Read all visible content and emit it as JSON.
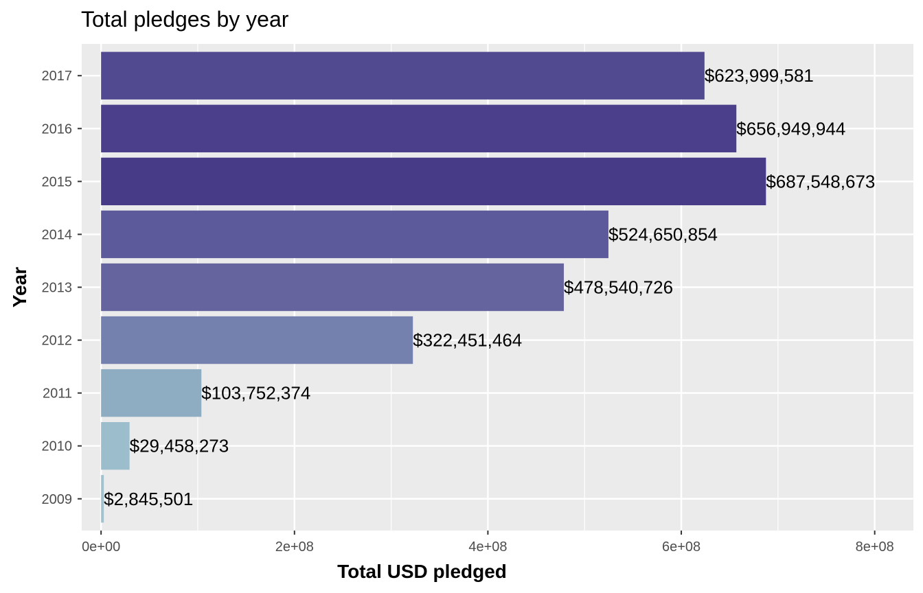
{
  "chart_data": {
    "type": "bar",
    "orientation": "horizontal",
    "title": "Total pledges by year",
    "xlabel": "Total USD pledged",
    "ylabel": "Year",
    "categories": [
      "2009",
      "2010",
      "2011",
      "2012",
      "2013",
      "2014",
      "2015",
      "2016",
      "2017"
    ],
    "values": [
      2845501,
      29458273,
      103752374,
      322451464,
      478540726,
      524650854,
      687548673,
      656949944,
      623999581
    ],
    "data_labels": [
      "$2,845,501",
      "$29,458,273",
      "$103,752,374",
      "$322,451,464",
      "$478,540,726",
      "$524,650,854",
      "$687,548,673",
      "$656,949,944",
      "$623,999,581"
    ],
    "colors": [
      "#a2c2cf",
      "#9bbdcc",
      "#8eacc2",
      "#7480ad",
      "#65649f",
      "#5c5a9a",
      "#473b88",
      "#4b3f8b",
      "#514a91"
    ],
    "xlim": [
      -40000000,
      800000000
    ],
    "x_ticks": [
      0,
      200000000,
      400000000,
      600000000,
      800000000
    ],
    "x_tick_labels": [
      "0e+00",
      "2e+08",
      "4e+08",
      "6e+08",
      "8e+08"
    ],
    "grid": true,
    "panel_background": "#ebebeb",
    "legend": "none"
  }
}
